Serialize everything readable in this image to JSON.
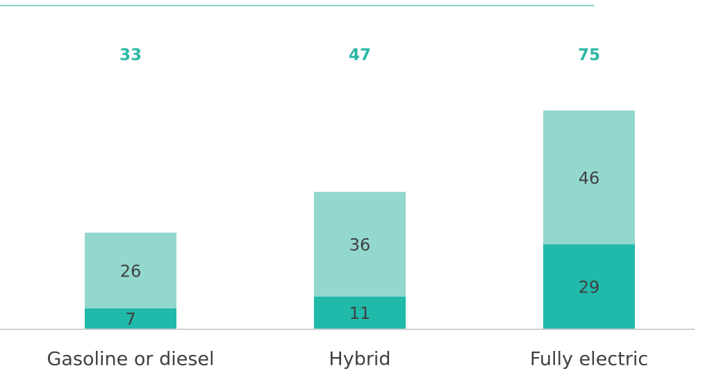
{
  "chart_data": {
    "type": "stacked_bar",
    "categories": [
      "Gasoline or diesel",
      "Hybrid",
      "Fully electric"
    ],
    "series": [
      {
        "color": "#20b9aa",
        "values": [
          7,
          11,
          29
        ]
      },
      {
        "color": "#93d8cf",
        "values": [
          26,
          36,
          46
        ]
      }
    ],
    "totals": [
      33,
      47,
      75
    ],
    "totals_color": "#2bb8a5",
    "ylim": [
      0,
      75
    ]
  }
}
